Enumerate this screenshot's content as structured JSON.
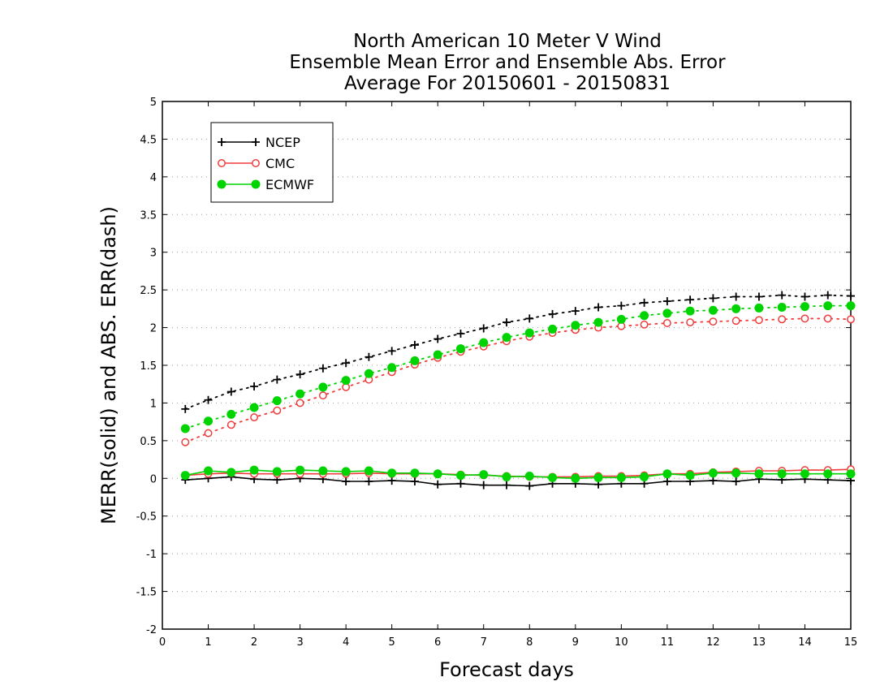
{
  "chart_data": {
    "type": "line",
    "title": [
      "North American 10 Meter V Wind",
      "Ensemble Mean Error and Ensemble Abs. Error",
      "Average For 20150601 - 20150831"
    ],
    "xlabel": "Forecast days",
    "ylabel": "MERR(solid) and ABS. ERR(dash)",
    "xlim": [
      0,
      15
    ],
    "ylim": [
      -2,
      5
    ],
    "x_ticks": [
      "0",
      "1",
      "2",
      "3",
      "4",
      "5",
      "6",
      "7",
      "8",
      "9",
      "10",
      "11",
      "12",
      "13",
      "14",
      "15"
    ],
    "y_ticks": [
      "-2",
      "-1.5",
      "-1",
      "-0.5",
      "0",
      "0.5",
      "1",
      "1.5",
      "2",
      "2.5",
      "3",
      "3.5",
      "4",
      "4.5",
      "5"
    ],
    "grid": "horizontal dotted",
    "legend_position": "top-left",
    "x": [
      0.5,
      1,
      1.5,
      2,
      2.5,
      3,
      3.5,
      4,
      4.5,
      5,
      5.5,
      6,
      6.5,
      7,
      7.5,
      8,
      8.5,
      9,
      9.5,
      10,
      10.5,
      11,
      11.5,
      12,
      12.5,
      13,
      13.5,
      14,
      14.5,
      15
    ],
    "series": [
      {
        "name": "NCEP",
        "color": "#000000",
        "marker": "plus",
        "merr": [
          -0.02,
          0,
          0.02,
          -0.01,
          -0.02,
          0,
          -0.01,
          -0.04,
          -0.04,
          -0.03,
          -0.04,
          -0.08,
          -0.07,
          -0.09,
          -0.09,
          -0.1,
          -0.07,
          -0.07,
          -0.08,
          -0.07,
          -0.07,
          -0.04,
          -0.04,
          -0.03,
          -0.04,
          -0.01,
          -0.02,
          -0.01,
          -0.02,
          -0.03
        ],
        "abs_err": [
          0.92,
          1.04,
          1.15,
          1.22,
          1.31,
          1.38,
          1.46,
          1.53,
          1.61,
          1.69,
          1.77,
          1.85,
          1.92,
          1.99,
          2.07,
          2.12,
          2.18,
          2.22,
          2.27,
          2.29,
          2.33,
          2.35,
          2.37,
          2.39,
          2.41,
          2.41,
          2.43,
          2.41,
          2.43,
          2.42
        ]
      },
      {
        "name": "CMC",
        "color": "#f03c3c",
        "marker": "open-circle",
        "merr": [
          0.04,
          0.06,
          0.07,
          0.06,
          0.06,
          0.06,
          0.06,
          0.06,
          0.07,
          0.06,
          0.06,
          0.06,
          0.05,
          0.04,
          0.03,
          0.02,
          0.02,
          0.02,
          0.03,
          0.03,
          0.04,
          0.06,
          0.06,
          0.08,
          0.09,
          0.1,
          0.1,
          0.11,
          0.11,
          0.12
        ],
        "abs_err": [
          0.48,
          0.6,
          0.71,
          0.81,
          0.9,
          1.0,
          1.1,
          1.21,
          1.31,
          1.41,
          1.51,
          1.6,
          1.68,
          1.75,
          1.82,
          1.88,
          1.93,
          1.97,
          2.0,
          2.02,
          2.04,
          2.06,
          2.07,
          2.08,
          2.09,
          2.1,
          2.11,
          2.12,
          2.12,
          2.11
        ]
      },
      {
        "name": "ECMWF",
        "color": "#00d400",
        "marker": "filled-circle",
        "merr": [
          0.04,
          0.1,
          0.08,
          0.11,
          0.09,
          0.11,
          0.1,
          0.09,
          0.1,
          0.07,
          0.07,
          0.06,
          0.04,
          0.05,
          0.02,
          0.03,
          0.01,
          0,
          0.01,
          0.01,
          0.02,
          0.06,
          0.04,
          0.07,
          0.07,
          0.06,
          0.06,
          0.06,
          0.06,
          0.06
        ],
        "abs_err": [
          0.66,
          0.76,
          0.85,
          0.94,
          1.03,
          1.12,
          1.21,
          1.3,
          1.39,
          1.47,
          1.56,
          1.64,
          1.72,
          1.8,
          1.87,
          1.93,
          1.98,
          2.03,
          2.07,
          2.11,
          2.16,
          2.19,
          2.22,
          2.23,
          2.25,
          2.26,
          2.27,
          2.28,
          2.29,
          2.29
        ]
      }
    ]
  }
}
